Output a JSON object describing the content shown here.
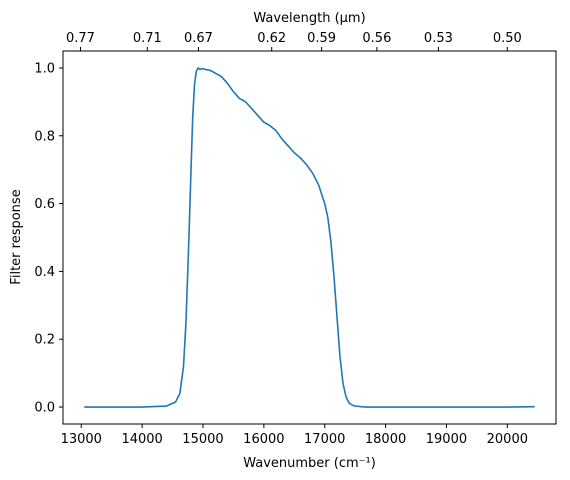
{
  "chart_data": {
    "type": "line",
    "xlabel": "Wavenumber (cm⁻¹)",
    "ylabel": "Filter response",
    "top_xlabel": "Wavelength (μm)",
    "xlim": [
      12700,
      20800
    ],
    "ylim": [
      -0.05,
      1.05
    ],
    "xticks": [
      13000,
      14000,
      15000,
      16000,
      17000,
      18000,
      19000,
      20000
    ],
    "yticks": [
      0.0,
      0.2,
      0.4,
      0.6,
      0.8,
      1.0
    ],
    "ytick_labels": [
      "0.0",
      "0.2",
      "0.4",
      "0.6",
      "0.8",
      "1.0"
    ],
    "top_ticks": [
      {
        "label": "0.77",
        "wavenumber": 12987
      },
      {
        "label": "0.71",
        "wavenumber": 14085
      },
      {
        "label": "0.67",
        "wavenumber": 14925
      },
      {
        "label": "0.62",
        "wavenumber": 16129
      },
      {
        "label": "0.59",
        "wavenumber": 16949
      },
      {
        "label": "0.56",
        "wavenumber": 17857
      },
      {
        "label": "0.53",
        "wavenumber": 18868
      },
      {
        "label": "0.50",
        "wavenumber": 20000
      }
    ],
    "grid": false,
    "series": [
      {
        "color": "#1f77b4",
        "x": [
          13050,
          13500,
          14000,
          14400,
          14550,
          14620,
          14680,
          14720,
          14760,
          14800,
          14830,
          14860,
          14890,
          14920,
          14950,
          15000,
          15050,
          15100,
          15150,
          15200,
          15300,
          15400,
          15500,
          15600,
          15700,
          15800,
          15900,
          16000,
          16100,
          16200,
          16300,
          16400,
          16500,
          16600,
          16700,
          16800,
          16900,
          17000,
          17050,
          17100,
          17150,
          17200,
          17250,
          17300,
          17350,
          17400,
          17450,
          17500,
          17550,
          17600,
          17700,
          17800,
          18000,
          18500,
          19000,
          19500,
          20000,
          20450
        ],
        "y": [
          0.0,
          0.0,
          0.0,
          0.003,
          0.015,
          0.04,
          0.12,
          0.25,
          0.45,
          0.68,
          0.85,
          0.95,
          0.99,
          1.0,
          0.996,
          0.998,
          0.995,
          0.994,
          0.99,
          0.985,
          0.975,
          0.955,
          0.93,
          0.91,
          0.9,
          0.88,
          0.86,
          0.84,
          0.83,
          0.815,
          0.79,
          0.77,
          0.75,
          0.735,
          0.715,
          0.69,
          0.655,
          0.6,
          0.56,
          0.49,
          0.39,
          0.27,
          0.15,
          0.07,
          0.03,
          0.012,
          0.006,
          0.003,
          0.002,
          0.001,
          0.0,
          0.0,
          0.0,
          0.0,
          0.0,
          0.0,
          0.0,
          0.001
        ]
      }
    ]
  }
}
